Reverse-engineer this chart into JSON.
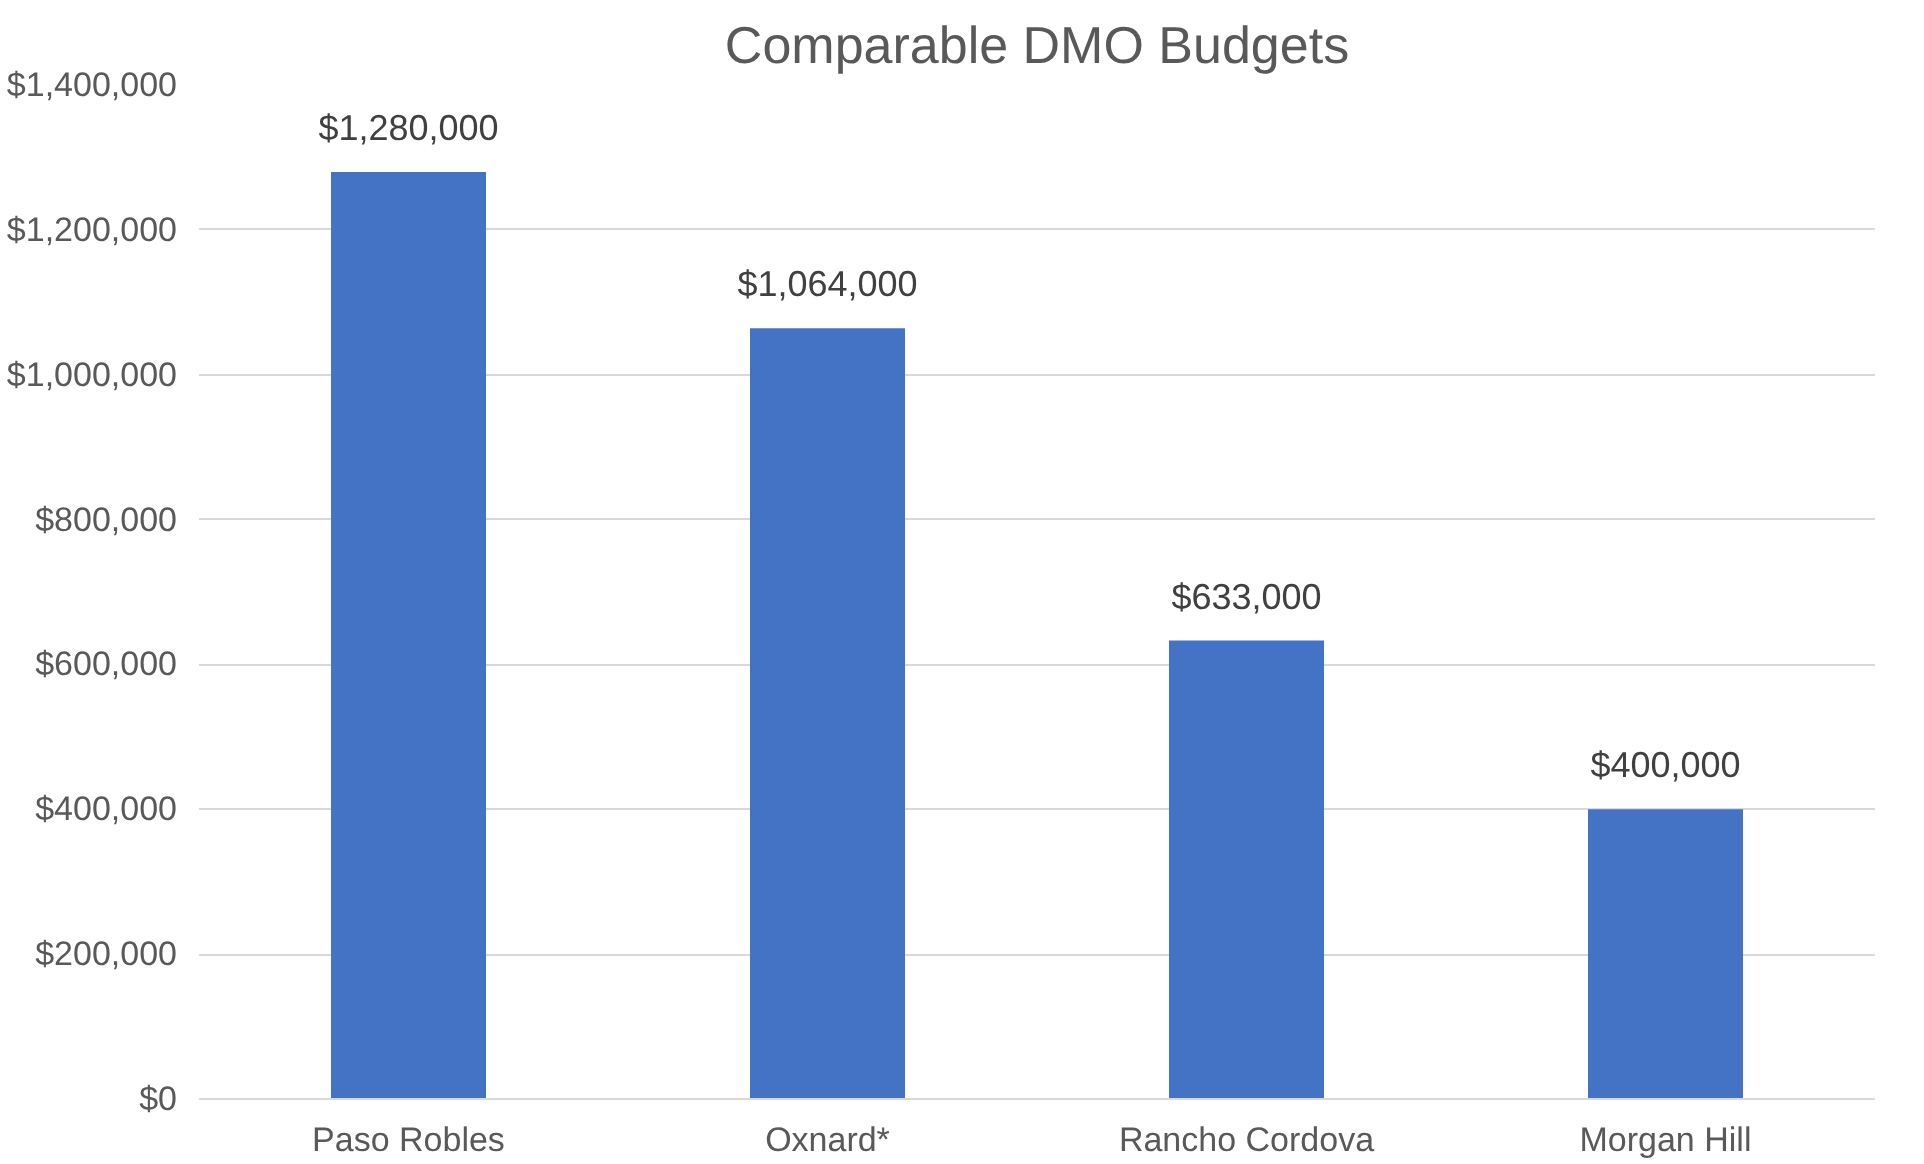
{
  "chart_data": {
    "type": "bar",
    "title": "Comparable DMO Budgets",
    "categories": [
      "Paso Robles",
      "Oxnard*",
      "Rancho Cordova",
      "Morgan Hill"
    ],
    "values": [
      1280000,
      1064000,
      633000,
      400000
    ],
    "value_labels": [
      "$1,280,000",
      "$1,064,000",
      "$633,000",
      "$400,000"
    ],
    "color": "#4472c4",
    "ylim": [
      0,
      1400000
    ],
    "yticks": [
      {
        "value": 0,
        "label": "$0"
      },
      {
        "value": 200000,
        "label": "$200,000"
      },
      {
        "value": 400000,
        "label": "$400,000"
      },
      {
        "value": 600000,
        "label": "$600,000"
      },
      {
        "value": 800000,
        "label": "$800,000"
      },
      {
        "value": 1000000,
        "label": "$1,000,000"
      },
      {
        "value": 1200000,
        "label": "$1,200,000"
      },
      {
        "value": 1400000,
        "label": "$1,400,000"
      }
    ],
    "grid": "y"
  }
}
